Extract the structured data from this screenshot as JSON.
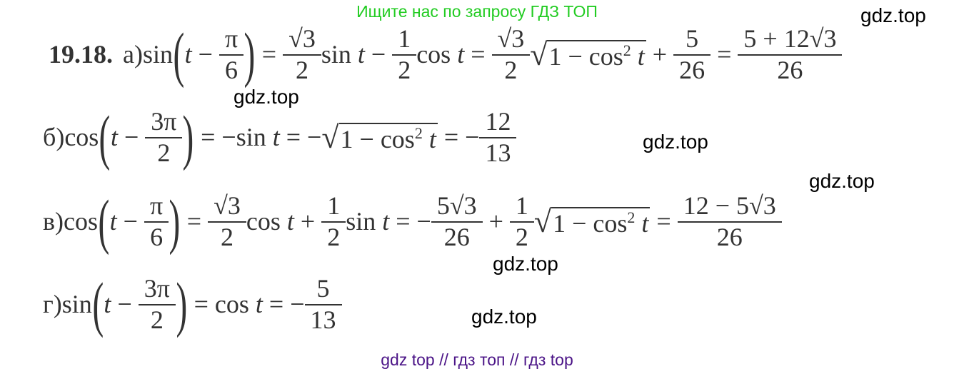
{
  "top_banner": "Ищите нас по запросу ГДЗ ТОП",
  "bottom_banner": "gdz top  //  гдз топ  //  гдз top",
  "watermark": "gdz.top",
  "colors": {
    "top_banner": "#22cc22",
    "bottom_banner": "#4b1487",
    "text": "#333333"
  },
  "problem_number": "19.18.",
  "lines": [
    {
      "label": "а)",
      "tokens": [
        {
          "t": "sin"
        },
        {
          "p": "("
        },
        {
          "t": "t",
          "i": 1
        },
        {
          "t": " − "
        },
        {
          "f": [
            "π",
            "6"
          ]
        },
        {
          "p": ")"
        },
        {
          "t": " = "
        },
        {
          "f": [
            "√3",
            "2"
          ]
        },
        {
          "t": "sin "
        },
        {
          "t": "t",
          "i": 1
        },
        {
          "t": " − "
        },
        {
          "f": [
            "1",
            "2"
          ]
        },
        {
          "t": "cos "
        },
        {
          "t": "t",
          "i": 1
        },
        {
          "t": " = "
        },
        {
          "f": [
            "√3",
            "2"
          ]
        },
        {
          "s": [
            "1 − cos",
            "2",
            "t"
          ]
        },
        {
          "t": " + "
        },
        {
          "f": [
            "5",
            "26"
          ]
        },
        {
          "t": " = "
        },
        {
          "f": [
            "5 + 12√3",
            "26"
          ]
        }
      ]
    },
    {
      "label": "б)",
      "tokens": [
        {
          "t": "cos"
        },
        {
          "p": "("
        },
        {
          "t": "t",
          "i": 1
        },
        {
          "t": " − "
        },
        {
          "f": [
            "3π",
            "2"
          ]
        },
        {
          "p": ")"
        },
        {
          "t": " = −sin "
        },
        {
          "t": "t",
          "i": 1
        },
        {
          "t": " = −"
        },
        {
          "s": [
            "1 − cos",
            "2",
            "t"
          ]
        },
        {
          "t": " = −"
        },
        {
          "f": [
            "12",
            "13"
          ]
        }
      ]
    },
    {
      "label": "в)",
      "tokens": [
        {
          "t": "cos"
        },
        {
          "p": "("
        },
        {
          "t": "t",
          "i": 1
        },
        {
          "t": " − "
        },
        {
          "f": [
            "π",
            "6"
          ]
        },
        {
          "p": ")"
        },
        {
          "t": " = "
        },
        {
          "f": [
            "√3",
            "2"
          ]
        },
        {
          "t": "cos "
        },
        {
          "t": "t",
          "i": 1
        },
        {
          "t": " + "
        },
        {
          "f": [
            "1",
            "2"
          ]
        },
        {
          "t": "sin "
        },
        {
          "t": "t",
          "i": 1
        },
        {
          "t": " = −"
        },
        {
          "f": [
            "5√3",
            "26"
          ]
        },
        {
          "t": " + "
        },
        {
          "f": [
            "1",
            "2"
          ]
        },
        {
          "s": [
            "1 − cos",
            "2",
            "t"
          ]
        },
        {
          "t": " = "
        },
        {
          "f": [
            "12 − 5√3",
            "26"
          ]
        }
      ]
    },
    {
      "label": "г)",
      "tokens": [
        {
          "t": "sin"
        },
        {
          "p": "("
        },
        {
          "t": "t",
          "i": 1
        },
        {
          "t": " − "
        },
        {
          "f": [
            "3π",
            "2"
          ]
        },
        {
          "p": ")"
        },
        {
          "t": " = cos "
        },
        {
          "t": "t",
          "i": 1
        },
        {
          "t": " = −"
        },
        {
          "f": [
            "5",
            "13"
          ]
        }
      ]
    }
  ]
}
